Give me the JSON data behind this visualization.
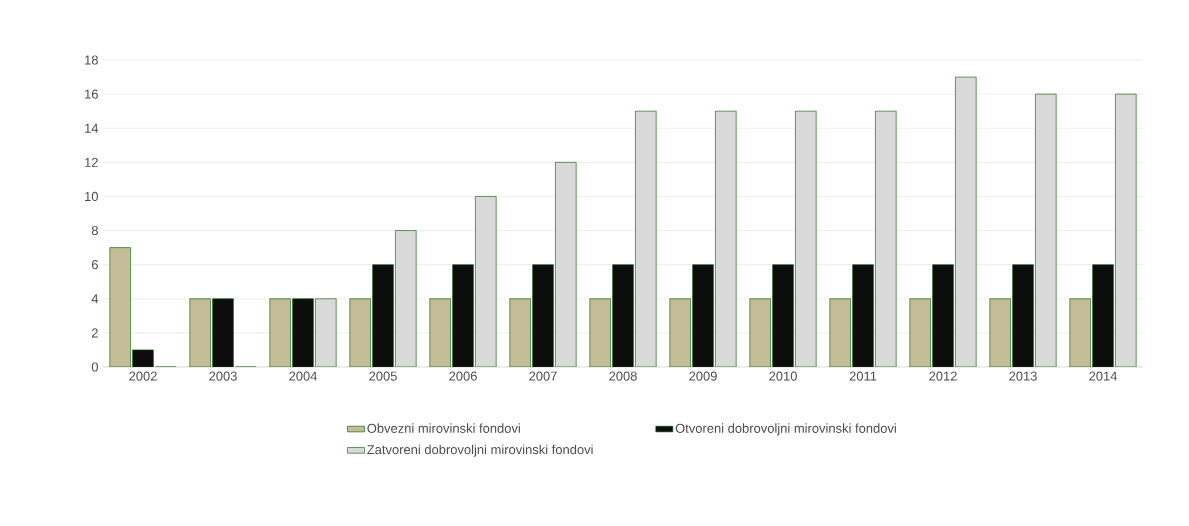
{
  "chart_data": {
    "type": "bar",
    "categories": [
      "2002",
      "2003",
      "2004",
      "2005",
      "2006",
      "2007",
      "2008",
      "2009",
      "2010",
      "2011",
      "2012",
      "2013",
      "2014"
    ],
    "series": [
      {
        "name": "Obvezni mirovinski fondovi",
        "color": "#c4bd97",
        "values": [
          7,
          4,
          4,
          4,
          4,
          4,
          4,
          4,
          4,
          4,
          4,
          4,
          4
        ]
      },
      {
        "name": "Otvoreni dobrovoljni mirovinski fondovi",
        "color": "#0d0d0d",
        "values": [
          1,
          4,
          4,
          6,
          6,
          6,
          6,
          6,
          6,
          6,
          6,
          6,
          6
        ]
      },
      {
        "name": "Zatvoreni dobrovoljni mirovinski fondovi",
        "color": "#d9d9d9",
        "values": [
          0,
          0,
          4,
          8,
          10,
          12,
          15,
          15,
          15,
          15,
          17,
          16,
          16
        ]
      }
    ],
    "ylim": [
      0,
      18
    ],
    "yticks": [
      0,
      2,
      4,
      6,
      8,
      10,
      12,
      14,
      16,
      18
    ],
    "grid": "y",
    "legend": "bottom"
  }
}
